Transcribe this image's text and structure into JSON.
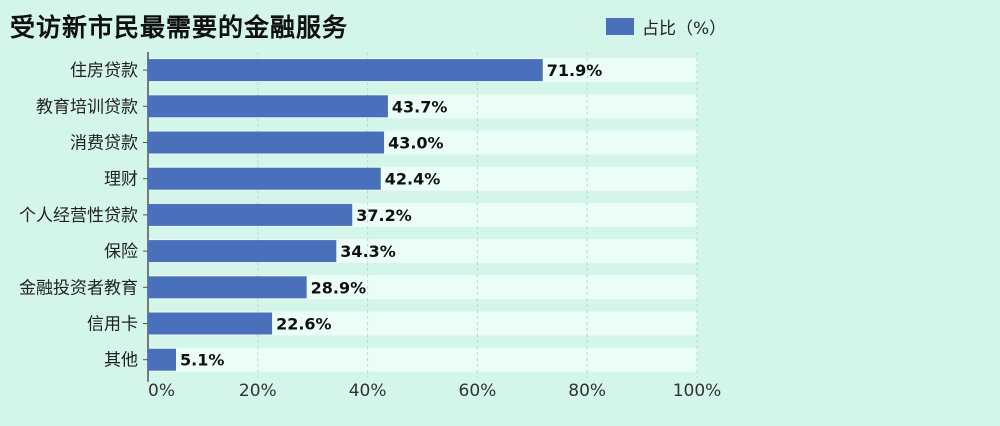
{
  "chart_data": {
    "type": "bar",
    "orientation": "horizontal",
    "title": "受访新市民最需要的金融服务",
    "categories": [
      "住房贷款",
      "教育培训贷款",
      "消费贷款",
      "理财",
      "个人经营性贷款",
      "保险",
      "金融投资者教育",
      "信用卡",
      "其他"
    ],
    "series": [
      {
        "name": "占比（%）",
        "values": [
          71.9,
          43.7,
          43.0,
          42.4,
          37.2,
          34.3,
          28.9,
          22.6,
          5.1
        ]
      }
    ],
    "value_labels": [
      "71.9%",
      "43.7%",
      "43.0%",
      "42.4%",
      "37.2%",
      "34.3%",
      "28.9%",
      "22.6%",
      "5.1%"
    ],
    "xlim": [
      0,
      100
    ],
    "x_ticks": [
      0,
      20,
      40,
      60,
      80,
      100
    ],
    "x_tick_labels": [
      "0%",
      "20%",
      "40%",
      "60%",
      "80%",
      "100%"
    ],
    "grid": true,
    "legend_position": "top-right",
    "colors": {
      "bar": "#4a6fbb",
      "band": "#eafdf6",
      "background": "#d4f5e9",
      "grid": "#b9dccd"
    }
  }
}
